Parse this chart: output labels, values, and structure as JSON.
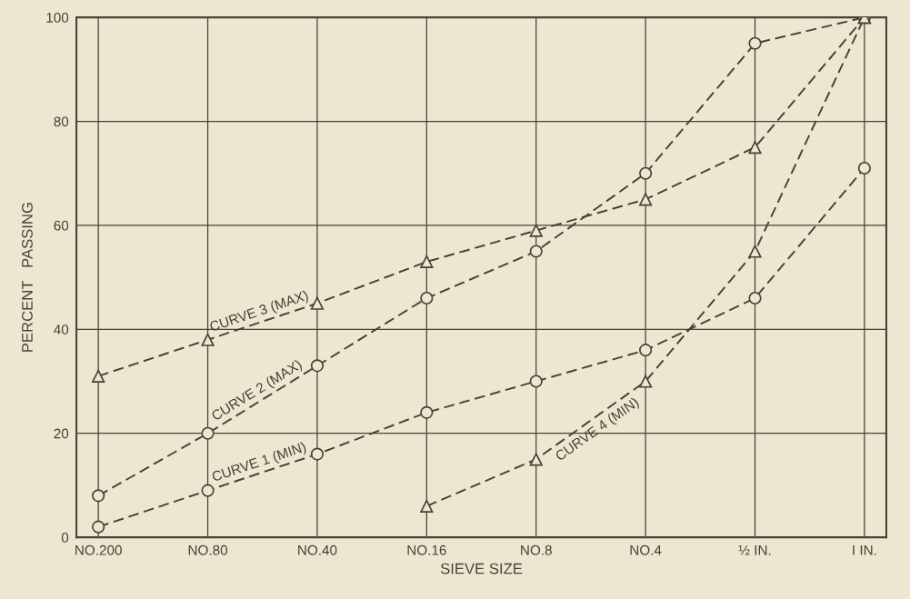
{
  "chart_data": {
    "type": "line",
    "xlabel": "SIEVE SIZE",
    "ylabel": "PERCENT   PASSING",
    "ylim": [
      0,
      100
    ],
    "categories": [
      "NO.200",
      "NO.80",
      "NO.40",
      "NO.16",
      "NO.8",
      "NO.4",
      "½ IN.",
      "I IN."
    ],
    "yticks": [
      0,
      20,
      40,
      60,
      80,
      100
    ],
    "grid": true,
    "line_style": "dashed",
    "series": [
      {
        "name": "CURVE 1 (MIN)",
        "color": "#4a4036",
        "marker": "circle",
        "values": [
          2,
          9,
          16,
          24,
          30,
          36,
          46,
          71
        ]
      },
      {
        "name": "CURVE 2 (MAX)",
        "color": "#4a4036",
        "marker": "circle",
        "values": [
          8,
          20,
          33,
          46,
          55,
          70,
          95,
          100
        ]
      },
      {
        "name": "CURVE 3 (MAX)",
        "color": "#4a4036",
        "marker": "triangle",
        "values": [
          31,
          38,
          45,
          53,
          59,
          65,
          75,
          100
        ]
      },
      {
        "name": "CURVE 4 (MIN)",
        "color": "#4a4036",
        "marker": "triangle",
        "values": [
          null,
          null,
          null,
          6,
          15,
          30,
          55,
          100
        ]
      }
    ]
  }
}
